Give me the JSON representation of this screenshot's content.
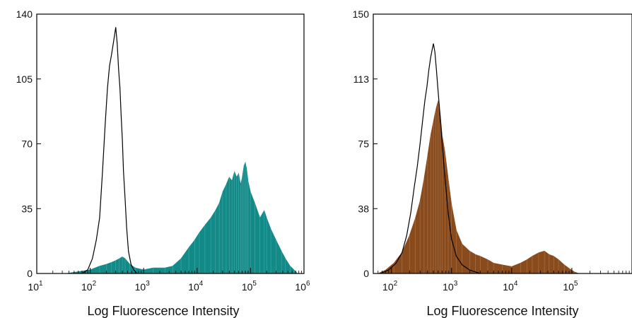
{
  "chart_data": [
    {
      "type": "area",
      "xscale": "log",
      "xlim": [
        10,
        1000000
      ],
      "ylim": [
        0,
        140
      ],
      "yticks": [
        "0",
        "35",
        "70",
        "105",
        "140"
      ],
      "xticks": [
        {
          "value": 10,
          "base": "10",
          "exp": "1"
        },
        {
          "value": 100,
          "base": "10",
          "exp": "2"
        },
        {
          "value": 1000,
          "base": "10",
          "exp": "3"
        },
        {
          "value": 10000,
          "base": "10",
          "exp": "4"
        },
        {
          "value": 100000,
          "base": "10",
          "exp": "5"
        },
        {
          "value": 1000000,
          "base": "10",
          "exp": "6"
        }
      ],
      "xlabel": "Log Fluorescence Intensity",
      "ylabel": "",
      "grid": false,
      "series": [
        {
          "role": "control-outline",
          "style": "line",
          "color": "#000000",
          "points": [
            [
              70,
              0
            ],
            [
              90,
              2
            ],
            [
              110,
              8
            ],
            [
              130,
              18
            ],
            [
              150,
              30
            ],
            [
              170,
              55
            ],
            [
              190,
              80
            ],
            [
              210,
              100
            ],
            [
              230,
              112
            ],
            [
              250,
              118
            ],
            [
              270,
              124
            ],
            [
              290,
              130
            ],
            [
              300,
              133
            ],
            [
              320,
              124
            ],
            [
              340,
              110
            ],
            [
              360,
              100
            ],
            [
              380,
              85
            ],
            [
              400,
              72
            ],
            [
              420,
              55
            ],
            [
              450,
              40
            ],
            [
              480,
              25
            ],
            [
              520,
              12
            ],
            [
              580,
              5
            ],
            [
              650,
              2
            ],
            [
              750,
              0
            ]
          ]
        },
        {
          "role": "stained",
          "style": "filled",
          "color": "#118a88",
          "points": [
            [
              35,
              0
            ],
            [
              60,
              1
            ],
            [
              100,
              2
            ],
            [
              150,
              4
            ],
            [
              200,
              5
            ],
            [
              250,
              6
            ],
            [
              300,
              7
            ],
            [
              350,
              8
            ],
            [
              400,
              9
            ],
            [
              450,
              8
            ],
            [
              550,
              5
            ],
            [
              700,
              3
            ],
            [
              1000,
              2
            ],
            [
              1500,
              3
            ],
            [
              2500,
              3
            ],
            [
              3500,
              4
            ],
            [
              5000,
              8
            ],
            [
              7000,
              14
            ],
            [
              9000,
              18
            ],
            [
              11000,
              22
            ],
            [
              14000,
              26
            ],
            [
              18000,
              30
            ],
            [
              22000,
              34
            ],
            [
              26000,
              38
            ],
            [
              30000,
              44
            ],
            [
              35000,
              48
            ],
            [
              40000,
              52
            ],
            [
              45000,
              50
            ],
            [
              50000,
              55
            ],
            [
              55000,
              52
            ],
            [
              60000,
              54
            ],
            [
              65000,
              48
            ],
            [
              70000,
              52
            ],
            [
              75000,
              58
            ],
            [
              80000,
              60
            ],
            [
              85000,
              56
            ],
            [
              90000,
              50
            ],
            [
              100000,
              44
            ],
            [
              120000,
              38
            ],
            [
              150000,
              30
            ],
            [
              180000,
              34
            ],
            [
              200000,
              30
            ],
            [
              240000,
              24
            ],
            [
              300000,
              18
            ],
            [
              380000,
              12
            ],
            [
              450000,
              8
            ],
            [
              550000,
              4
            ],
            [
              650000,
              2
            ],
            [
              750000,
              0
            ]
          ]
        }
      ]
    },
    {
      "type": "area",
      "xscale": "log",
      "xlim": [
        50,
        1000000
      ],
      "ylim": [
        0,
        150
      ],
      "yticks": [
        "0",
        "38",
        "75",
        "113",
        "150"
      ],
      "xticks": [
        {
          "value": 100,
          "base": "10",
          "exp": "2"
        },
        {
          "value": 1000,
          "base": "10",
          "exp": "3"
        },
        {
          "value": 10000,
          "base": "10",
          "exp": "4"
        },
        {
          "value": 100000,
          "base": "10",
          "exp": "5"
        }
      ],
      "xlabel": "Log Fluorescence Intensity",
      "ylabel": "",
      "grid": false,
      "series": [
        {
          "role": "control-outline",
          "style": "line",
          "color": "#000000",
          "points": [
            [
              65,
              0
            ],
            [
              90,
              2
            ],
            [
              120,
              6
            ],
            [
              150,
              12
            ],
            [
              180,
              22
            ],
            [
              210,
              35
            ],
            [
              240,
              50
            ],
            [
              270,
              62
            ],
            [
              300,
              75
            ],
            [
              330,
              88
            ],
            [
              360,
              100
            ],
            [
              390,
              108
            ],
            [
              420,
              118
            ],
            [
              450,
              125
            ],
            [
              480,
              130
            ],
            [
              500,
              133
            ],
            [
              530,
              128
            ],
            [
              560,
              118
            ],
            [
              600,
              105
            ],
            [
              650,
              90
            ],
            [
              700,
              75
            ],
            [
              780,
              55
            ],
            [
              880,
              35
            ],
            [
              1000,
              20
            ],
            [
              1200,
              10
            ],
            [
              1500,
              5
            ],
            [
              2000,
              2
            ],
            [
              3000,
              0
            ]
          ]
        },
        {
          "role": "stained",
          "style": "filled",
          "color": "#8a4b1c",
          "points": [
            [
              60,
              0
            ],
            [
              80,
              2
            ],
            [
              110,
              6
            ],
            [
              150,
              12
            ],
            [
              200,
              22
            ],
            [
              250,
              32
            ],
            [
              300,
              42
            ],
            [
              350,
              55
            ],
            [
              400,
              68
            ],
            [
              450,
              80
            ],
            [
              500,
              88
            ],
            [
              550,
              95
            ],
            [
              600,
              100
            ],
            [
              650,
              92
            ],
            [
              700,
              80
            ],
            [
              780,
              70
            ],
            [
              880,
              55
            ],
            [
              1000,
              40
            ],
            [
              1200,
              25
            ],
            [
              1500,
              17
            ],
            [
              2000,
              13
            ],
            [
              2500,
              11
            ],
            [
              3000,
              10
            ],
            [
              4000,
              8
            ],
            [
              5000,
              6
            ],
            [
              7000,
              5
            ],
            [
              10000,
              4
            ],
            [
              14000,
              6
            ],
            [
              18000,
              8
            ],
            [
              22000,
              10
            ],
            [
              28000,
              12
            ],
            [
              35000,
              13
            ],
            [
              42000,
              11
            ],
            [
              50000,
              10
            ],
            [
              60000,
              8
            ],
            [
              75000,
              5
            ],
            [
              90000,
              3
            ],
            [
              110000,
              1
            ],
            [
              130000,
              0
            ]
          ]
        }
      ]
    }
  ]
}
